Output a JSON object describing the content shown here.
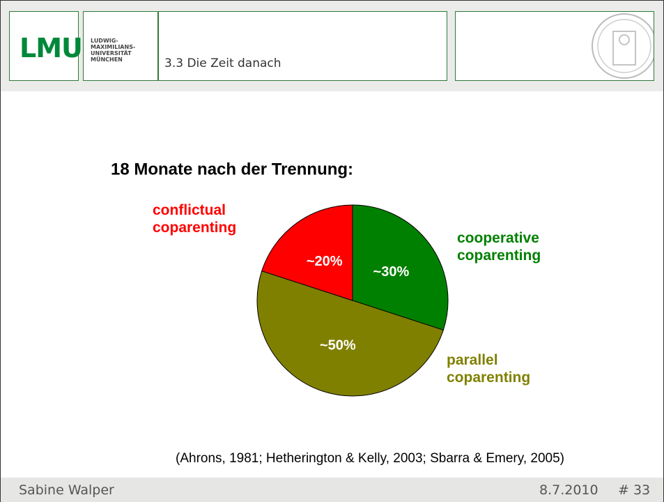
{
  "header": {
    "logo": "LMU",
    "university": [
      "LUDWIG-",
      "MAXIMILIANS-",
      "UNIVERSITÄT",
      "MÜNCHEN"
    ],
    "section": "3.3 Die Zeit danach"
  },
  "chart_data": {
    "type": "pie",
    "title": "18 Monate nach der Trennung:",
    "categories": [
      "cooperative coparenting",
      "parallel coparenting",
      "conflictual coparenting"
    ],
    "values": [
      30,
      50,
      20
    ],
    "value_labels": [
      "~30%",
      "~50%",
      "~20%"
    ],
    "colors": [
      "#008000",
      "#808000",
      "#ff0000"
    ],
    "annotations": [
      "(Ahrons, 1981; Hetherington & Kelly, 2003; Sbarra & Emery, 2005)"
    ]
  },
  "footer": {
    "author": "Sabine Walper",
    "date": "8.7.2010",
    "page": "# 33"
  }
}
